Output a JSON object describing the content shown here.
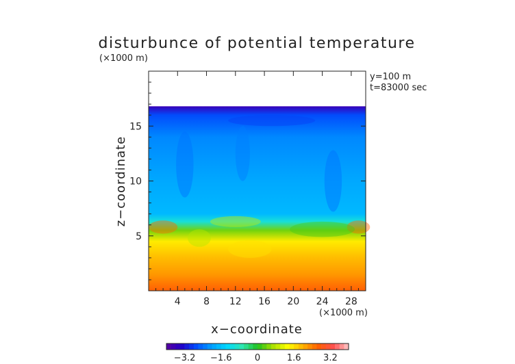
{
  "chart_data": {
    "type": "heatmap",
    "title": "disturbunce of potential temperature",
    "x_multiplier_label": "(×1000 m)",
    "z_multiplier_label": "(×1000 m)",
    "xlabel": "x−coordinate",
    "ylabel": "z−coordinate",
    "annotations": [
      "y=100 m",
      "t=83000 sec"
    ],
    "xlim": [
      0,
      30
    ],
    "ylim": [
      0,
      20
    ],
    "x_ticks": [
      4,
      8,
      12,
      16,
      20,
      24,
      28
    ],
    "y_ticks": [
      5,
      10,
      15
    ],
    "domain_top_z": 16.8,
    "colorbar": {
      "range": [
        -4,
        4
      ],
      "ticks": [
        -3.2,
        -1.6,
        0,
        1.6,
        3.2
      ],
      "tick_labels": [
        "−3.2",
        "−1.6",
        "0",
        "1.6",
        "3.2"
      ],
      "colors": [
        "#5a00a0",
        "#2000c8",
        "#0050ff",
        "#00a0ff",
        "#00d8ff",
        "#30e8b0",
        "#20c020",
        "#a8e000",
        "#ffff00",
        "#ffb000",
        "#ff6000",
        "#ff5050",
        "#ffc8c8"
      ]
    },
    "vertical_profile": [
      {
        "z": 0.0,
        "value": 2.7
      },
      {
        "z": 1.5,
        "value": 2.2
      },
      {
        "z": 3.0,
        "value": 1.9
      },
      {
        "z": 4.5,
        "value": 1.5
      },
      {
        "z": 5.5,
        "value": 0.4
      },
      {
        "z": 6.3,
        "value": -1.0
      },
      {
        "z": 7.0,
        "value": -1.7
      },
      {
        "z": 10.0,
        "value": -1.9
      },
      {
        "z": 14.0,
        "value": -2.2
      },
      {
        "z": 16.0,
        "value": -2.7
      },
      {
        "z": 16.8,
        "value": -3.6
      }
    ]
  }
}
